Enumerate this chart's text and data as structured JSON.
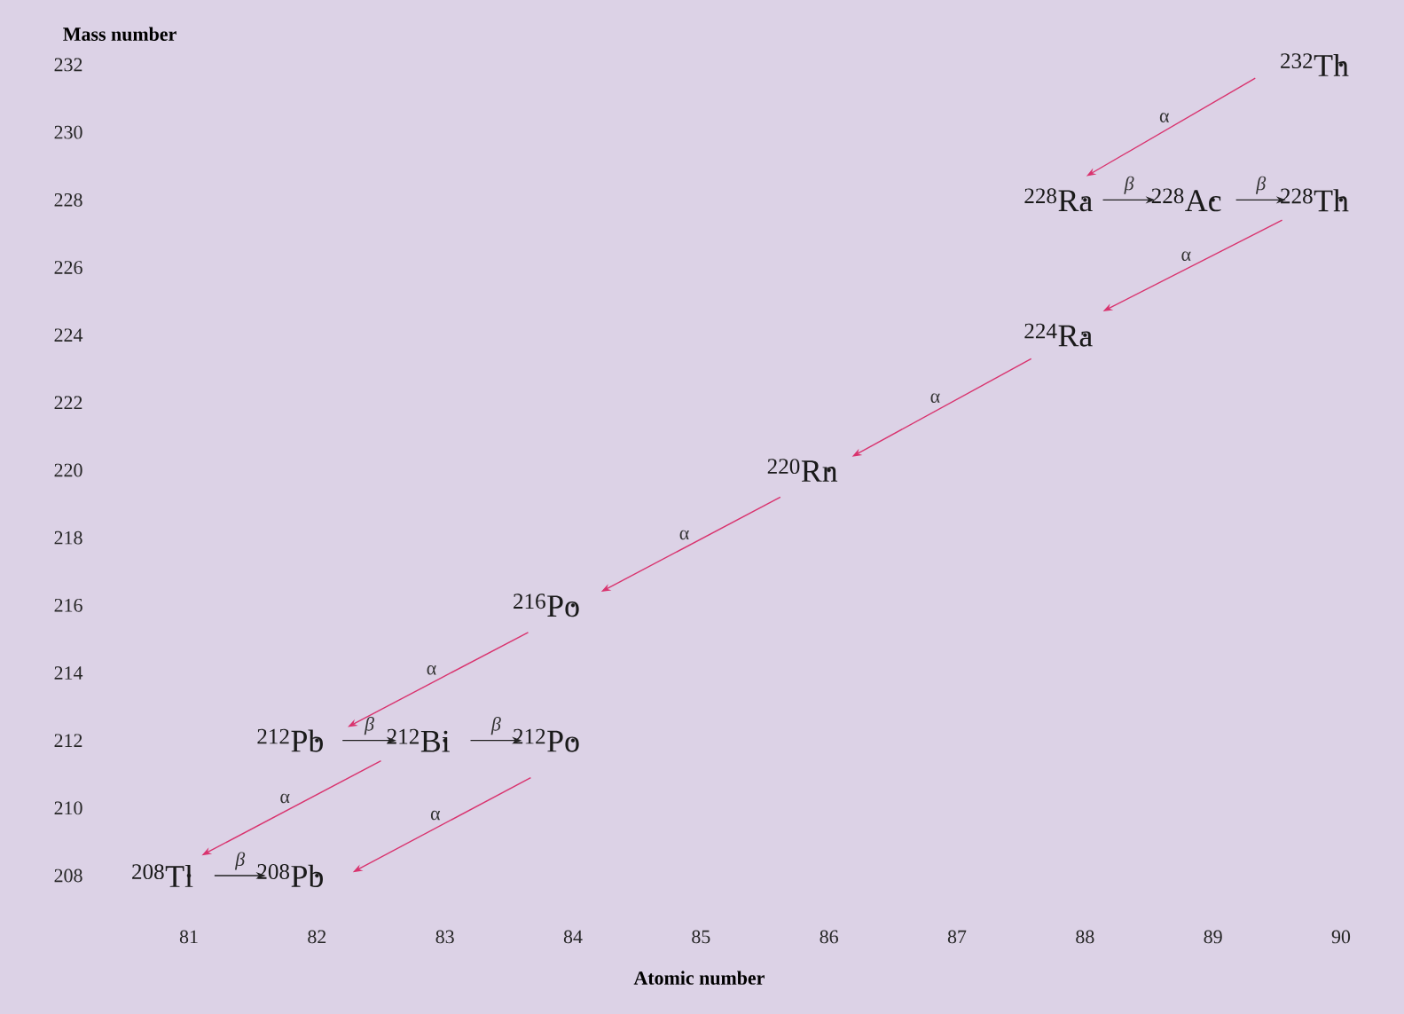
{
  "chart_data": {
    "type": "scatter",
    "xlabel": "Atomic number",
    "ylabel": "Mass number",
    "xlim": [
      81,
      90
    ],
    "xticks": [
      81,
      82,
      83,
      84,
      85,
      86,
      87,
      88,
      89,
      90
    ],
    "ylim": [
      208,
      232
    ],
    "yticks": [
      208,
      210,
      212,
      214,
      216,
      218,
      220,
      222,
      224,
      226,
      228,
      230,
      232
    ],
    "series": [
      {
        "color": "#1a1a1a",
        "x": [
          90,
          88,
          89,
          90,
          88,
          86,
          84,
          82,
          83,
          84,
          81,
          82
        ],
        "values": [
          232,
          228,
          228,
          228,
          224,
          220,
          216,
          212,
          212,
          212,
          208,
          208
        ],
        "value_labels": [
          "$^{232}$Th",
          "$^{228}$Ra",
          "$^{228}$Ac",
          "$^{228}$Th",
          "$^{224}$Ra",
          "$^{220}$Rn",
          "$^{216}$Po",
          "$^{212}$Pb",
          "$^{212}$Bi",
          "$^{212}$Po",
          "$^{208}$Tl",
          "$^{208}$Pb"
        ]
      },
      {
        "type": "line",
        "color": "#d9336e",
        "x": [
          89.33,
          88.01
        ],
        "values": [
          231.6,
          228.7
        ]
      },
      {
        "type": "line",
        "color": "#d9336e",
        "x": [
          89.54,
          88.14
        ],
        "values": [
          227.4,
          224.7
        ]
      },
      {
        "type": "line",
        "color": "#d9336e",
        "x": [
          87.58,
          86.18
        ],
        "values": [
          223.3,
          220.4
        ]
      },
      {
        "type": "line",
        "color": "#d9336e",
        "x": [
          85.62,
          84.22
        ],
        "values": [
          219.2,
          216.4
        ]
      },
      {
        "type": "line",
        "color": "#d9336e",
        "x": [
          83.65,
          82.24
        ],
        "values": [
          215.2,
          212.4
        ]
      },
      {
        "type": "line",
        "color": "#d9336e",
        "x": [
          82.5,
          81.1
        ],
        "values": [
          211.4,
          208.6
        ]
      },
      {
        "type": "line",
        "color": "#d9336e",
        "x": [
          83.67,
          82.28
        ],
        "values": [
          210.9,
          208.1
        ]
      },
      {
        "type": "line",
        "color": "#222222",
        "x": [
          88.14,
          88.55
        ],
        "values": [
          228,
          228
        ]
      },
      {
        "type": "line",
        "color": "#222222",
        "x": [
          89.18,
          89.57
        ],
        "values": [
          228,
          228
        ]
      },
      {
        "type": "line",
        "color": "#222222",
        "x": [
          82.2,
          82.62
        ],
        "values": [
          212,
          212
        ]
      },
      {
        "type": "line",
        "color": "#222222",
        "x": [
          83.2,
          83.6
        ],
        "values": [
          212,
          212
        ]
      },
      {
        "type": "line",
        "color": "#222222",
        "x": [
          81.2,
          81.6
        ],
        "values": [
          208,
          208
        ]
      }
    ],
    "annotations": [
      "α",
      "α",
      "α",
      "α",
      "α",
      "α",
      "α",
      "*β*",
      "*β*",
      "*β*",
      "*β*",
      "*β*"
    ]
  }
}
